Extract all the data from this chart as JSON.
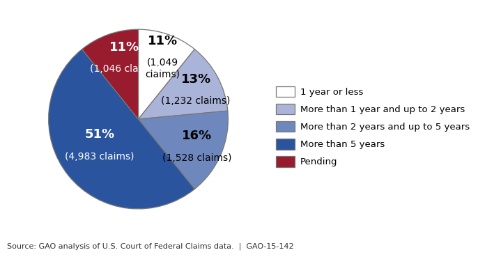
{
  "slices": [
    {
      "label": "1 year or less",
      "pct": 11,
      "claims": 1049,
      "color": "#ffffff",
      "edgecolor": "#888888"
    },
    {
      "label": "More than 1 year and up to 2 years",
      "pct": 13,
      "claims": 1232,
      "color": "#aab4d8",
      "edgecolor": "#888888"
    },
    {
      "label": "More than 2 years and up to 5 years",
      "pct": 16,
      "claims": 1528,
      "color": "#6e88be",
      "edgecolor": "#888888"
    },
    {
      "label": "More than 5 years",
      "pct": 51,
      "claims": 4983,
      "color": "#2a549e",
      "edgecolor": "#888888"
    },
    {
      "label": "Pending",
      "pct": 11,
      "claims": 1046,
      "color": "#981b2e",
      "edgecolor": "#888888"
    }
  ],
  "label_text_colors": [
    "#000000",
    "#000000",
    "#000000",
    "#ffffff",
    "#ffffff"
  ],
  "startangle": 90,
  "source_text": "Source: GAO analysis of U.S. Court of Federal Claims data.  |  GAO-15-142",
  "source_fontsize": 8,
  "legend_fontsize": 9.5,
  "pct_fontsize": 13,
  "claims_fontsize": 10
}
